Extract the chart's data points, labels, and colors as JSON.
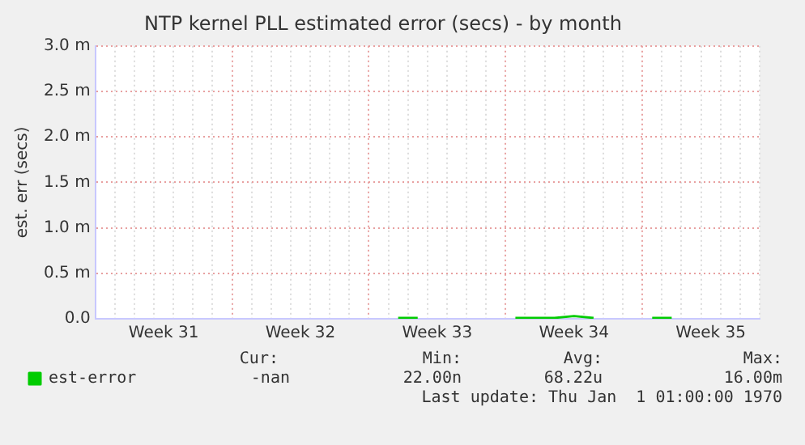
{
  "chart_data": {
    "type": "line",
    "title": "NTP kernel PLL estimated error (secs) - by month",
    "ylabel": "est. err (secs)",
    "categories": [
      null,
      null,
      null,
      "Week 31",
      null,
      null,
      null,
      null,
      null,
      null,
      "Week 32",
      null,
      null,
      null,
      null,
      null,
      null,
      "Week 33",
      null,
      null,
      null,
      null,
      null,
      null,
      "Week 34",
      null,
      null,
      null,
      null,
      null,
      null,
      "Week 35",
      null,
      null
    ],
    "series": [
      {
        "name": "est-error",
        "color": "#00cc00",
        "values": [
          null,
          null,
          null,
          null,
          null,
          null,
          null,
          null,
          null,
          null,
          null,
          null,
          null,
          null,
          null,
          0.01,
          0.01,
          null,
          null,
          null,
          null,
          0.01,
          0.01,
          0.01,
          0.03,
          0.01,
          null,
          null,
          0.01,
          0.01,
          null,
          null,
          null,
          null
        ]
      }
    ],
    "ylim": [
      0,
      3
    ],
    "yticks": [
      {
        "value": 0,
        "label": "0.0"
      },
      {
        "value": 0.5,
        "label": "0.5 m"
      },
      {
        "value": 1,
        "label": "1.0 m"
      },
      {
        "value": 1.5,
        "label": "1.5 m"
      },
      {
        "value": 2,
        "label": "2.0 m"
      },
      {
        "value": 2.5,
        "label": "2.5 m"
      },
      {
        "value": 3,
        "label": "3.0 m"
      }
    ],
    "grid": true,
    "legend": "bottom left",
    "marker": "none",
    "line_style": "solid",
    "annotations": [
      "Cur:",
      "-nan",
      "Min:",
      "22.00n",
      "Avg:",
      "68.22u",
      "Max:",
      "16.00m",
      "Last update: Thu Jan  1 01:00:00 1970"
    ]
  }
}
